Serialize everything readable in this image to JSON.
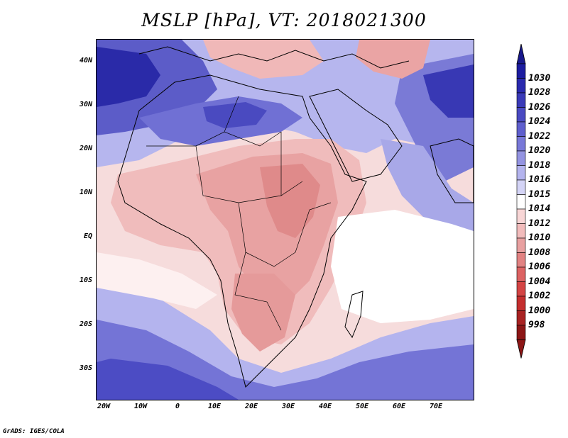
{
  "title": "MSLP [hPa], VT: 2018021300",
  "credit": "GrADS: IGES/COLA",
  "lat_labels": [
    "40N",
    "30N",
    "20N",
    "10N",
    "EQ",
    "10S",
    "20S",
    "30S"
  ],
  "lon_labels": [
    "20W",
    "10W",
    "0",
    "10E",
    "20E",
    "30E",
    "40E",
    "50E",
    "60E",
    "70E"
  ],
  "colorbar": {
    "levels": [
      "1030",
      "1028",
      "1026",
      "1024",
      "1022",
      "1020",
      "1018",
      "1016",
      "1015",
      "1014",
      "1012",
      "1010",
      "1008",
      "1006",
      "1004",
      "1002",
      "1000",
      "998"
    ],
    "colors": [
      "#1c1ca0",
      "#2a2aae",
      "#3a3ab8",
      "#4a4ac2",
      "#5f5fce",
      "#7878d8",
      "#9494e2",
      "#b4b4ee",
      "#d4d4f6",
      "#ffffff",
      "#f8d6d6",
      "#f2bcbc",
      "#e8a0a0",
      "#e28282",
      "#dc6262",
      "#d44444",
      "#c42e2e",
      "#a82222",
      "#8c1616"
    ],
    "tip_top_color": "#18188c",
    "tip_bottom_color": "#8c1616"
  },
  "colors": {
    "land_outline": "#000000",
    "high_pressure": "#3a3ab8",
    "low_pressure": "#d48888",
    "neutral": "#ffffff"
  }
}
